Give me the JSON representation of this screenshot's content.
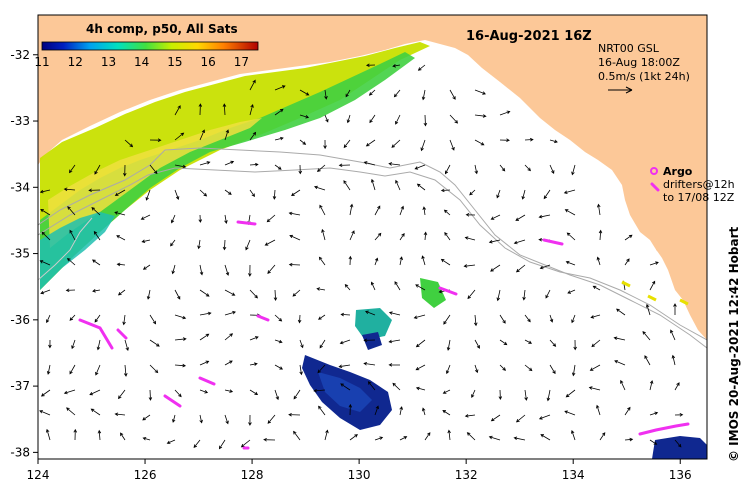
{
  "colorbar": {
    "title": "4h comp, p50, All Sats",
    "ticks": [
      "11",
      "12",
      "13",
      "14",
      "15",
      "16",
      "17"
    ],
    "values": [
      11,
      12,
      13,
      14,
      15,
      16,
      17
    ],
    "range": [
      11,
      17.5
    ]
  },
  "title": "16-Aug-2021 16Z",
  "currents": {
    "line1": "NRT00 GSL",
    "line2": "16-Aug 18:00Z",
    "line3": "0.5m/s (1kt 24h)"
  },
  "argo": {
    "label": "Argo",
    "line2": "drifters@12h",
    "line3": "to 17/08 12Z"
  },
  "credit": "© IMOS 20-Aug-2021 12:42 Hobart",
  "axes": {
    "x_ticks": [
      "124",
      "126",
      "128",
      "130",
      "132",
      "134",
      "136"
    ],
    "y_ticks": [
      "-32",
      "-33",
      "-34",
      "-35",
      "-36",
      "-37",
      "-38"
    ],
    "lon_range": [
      124,
      136.5
    ],
    "lat_range": [
      -31.4,
      -38.1
    ]
  },
  "colors": {
    "land": "#fcc898",
    "ocean": "#ffffff",
    "argo": "#f030f0",
    "contour": "#aaaaaa",
    "deep_sst": "#0a1f90",
    "mid_sst": "#20c0a0",
    "warm_sst": "#e8e000"
  }
}
